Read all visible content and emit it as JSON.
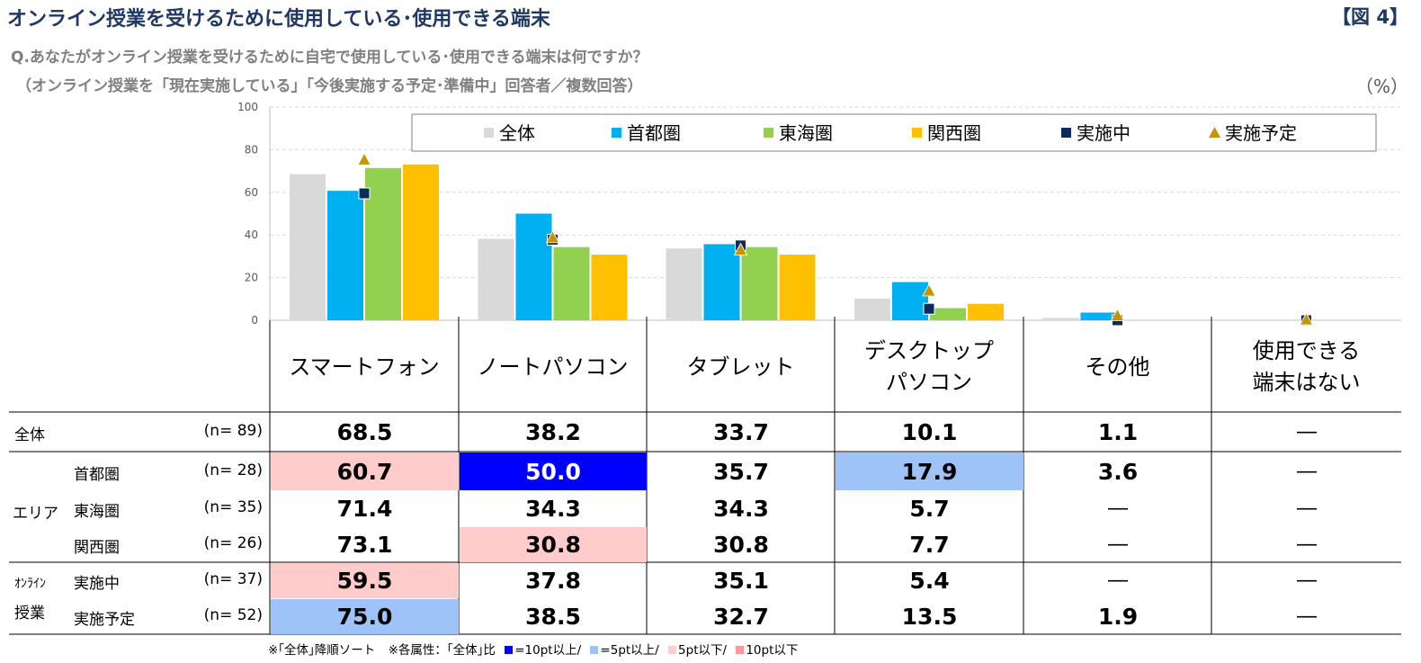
{
  "title": "オンライン授業を受けるために使用している･使用できる端末",
  "figure_label": "【図 4】",
  "question": "Q.あなたがオンライン授業を受けるために自宅で使用している･使用できる端末は何ですか？",
  "subquestion": "（オンライン授業を「現在実施している」「今後実施する予定･準備中」回答者／複数回答）",
  "unit": "（%）",
  "colors": {
    "all": "#d9d9d9",
    "shuto": "#00b0f0",
    "tokai": "#92d050",
    "kansai": "#ffc000",
    "jisshi": "#0c2a5c",
    "yotei": "#c59400",
    "up10": "#0000ff",
    "up5": "#9dc3f8",
    "down5": "#ffcccc",
    "down10": "#ff9999"
  },
  "chart_data": {
    "type": "bar",
    "categories": [
      "スマートフォン",
      "ノートパソコン",
      "タブレット",
      "デスクトップ\nパソコン",
      "その他",
      "使用できる\n端末はない"
    ],
    "ylim": [
      0,
      100
    ],
    "yticks": [
      "0",
      "20",
      "40",
      "60",
      "80",
      "100"
    ],
    "grid": true,
    "legend_position": "top-right",
    "series": [
      {
        "name": "全体",
        "kind": "bar",
        "color": "#d9d9d9",
        "values": [
          68.5,
          38.2,
          33.7,
          10.1,
          1.1,
          0
        ]
      },
      {
        "name": "首都圏",
        "kind": "bar",
        "color": "#00b0f0",
        "values": [
          60.7,
          50.0,
          35.7,
          17.9,
          3.6,
          0
        ]
      },
      {
        "name": "東海圏",
        "kind": "bar",
        "color": "#92d050",
        "values": [
          71.4,
          34.3,
          34.3,
          5.7,
          0,
          0
        ]
      },
      {
        "name": "関西圏",
        "kind": "bar",
        "color": "#ffc000",
        "values": [
          73.1,
          30.8,
          30.8,
          7.7,
          0,
          0
        ]
      },
      {
        "name": "実施中",
        "kind": "square",
        "color": "#0c2a5c",
        "values": [
          59.5,
          37.8,
          35.1,
          5.4,
          0,
          0
        ]
      },
      {
        "name": "実施予定",
        "kind": "triangle",
        "color": "#c59400",
        "values": [
          75.0,
          38.5,
          32.7,
          13.5,
          1.9,
          0
        ]
      }
    ]
  },
  "table": {
    "rows": [
      {
        "label": "全体",
        "group": "",
        "n": "(n=  89)",
        "cells": [
          "68.5",
          "38.2",
          "33.7",
          "10.1",
          "1.1",
          "―"
        ],
        "hl": [
          "",
          "",
          "",
          "",
          "",
          ""
        ]
      },
      {
        "label": "首都圏",
        "group": "エリア",
        "n": "(n=  28)",
        "cells": [
          "60.7",
          "50.0",
          "35.7",
          "17.9",
          "3.6",
          "―"
        ],
        "hl": [
          "down5",
          "up10",
          "",
          "up5",
          "",
          ""
        ]
      },
      {
        "label": "東海圏",
        "group": "エリア",
        "n": "(n=  35)",
        "cells": [
          "71.4",
          "34.3",
          "34.3",
          "5.7",
          "―",
          "―"
        ],
        "hl": [
          "",
          "",
          "",
          "",
          "",
          ""
        ]
      },
      {
        "label": "関西圏",
        "group": "エリア",
        "n": "(n=  26)",
        "cells": [
          "73.1",
          "30.8",
          "30.8",
          "7.7",
          "―",
          "―"
        ],
        "hl": [
          "",
          "down5",
          "",
          "",
          "",
          ""
        ]
      },
      {
        "label": "実施中",
        "group": "オンライン授業",
        "n": "(n=  37)",
        "cells": [
          "59.5",
          "37.8",
          "35.1",
          "5.4",
          "―",
          "―"
        ],
        "hl": [
          "down5",
          "",
          "",
          "",
          "",
          ""
        ]
      },
      {
        "label": "実施予定",
        "group": "オンライン授業",
        "n": "(n=  52)",
        "cells": [
          "75.0",
          "38.5",
          "32.7",
          "13.5",
          "1.9",
          "―"
        ],
        "hl": [
          "up5",
          "",
          "",
          "",
          "",
          ""
        ]
      }
    ],
    "group_labels": {
      "area": "エリア",
      "online_1": "ｵﾝﾗｲﾝ",
      "online_2": "授業"
    }
  },
  "footnote": {
    "sort": "※｢全体｣降順ソート",
    "basis": "※各属性：｢全体｣比",
    "up10": "=10pt以上/",
    "up5": "=5pt以上/",
    "down5": "5pt以下/",
    "down10": "10pt以下"
  }
}
